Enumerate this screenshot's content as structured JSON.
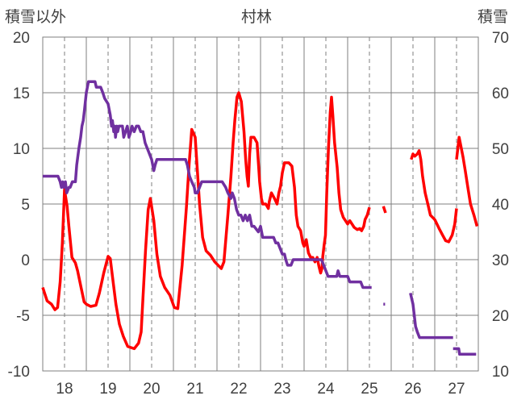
{
  "chart_data": {
    "type": "line",
    "title": "村林",
    "ylabel_left": "積雪以外",
    "ylabel_right": "積雪",
    "xlabel": "",
    "x_ticks": [
      "18",
      "19",
      "20",
      "21",
      "22",
      "23",
      "24",
      "25",
      "26",
      "27"
    ],
    "xlim": [
      17.5,
      27.5
    ],
    "ylim_left": [
      -10,
      20
    ],
    "ylim_right": [
      10,
      70
    ],
    "y_ticks_left": [
      -10,
      -5,
      0,
      5,
      10,
      15,
      20
    ],
    "y_ticks_right": [
      10,
      20,
      30,
      40,
      50,
      60,
      70
    ],
    "grid": true,
    "series": [
      {
        "axis": "left",
        "color": "#FF0000",
        "segments": [
          [
            [
              17.5,
              -2.5
            ],
            [
              17.6,
              -3.7
            ],
            [
              17.7,
              -4.0
            ],
            [
              17.78,
              -4.5
            ],
            [
              17.84,
              -4.3
            ],
            [
              17.9,
              -2.0
            ],
            [
              17.95,
              1.5
            ],
            [
              18.0,
              6.3
            ],
            [
              18.06,
              4.8
            ],
            [
              18.1,
              3.0
            ],
            [
              18.17,
              0.2
            ],
            [
              18.25,
              -0.3
            ],
            [
              18.3,
              -1.0
            ],
            [
              18.38,
              -2.5
            ],
            [
              18.45,
              -3.8
            ],
            [
              18.5,
              -4.0
            ],
            [
              18.6,
              -4.2
            ],
            [
              18.72,
              -4.1
            ],
            [
              18.8,
              -3.0
            ],
            [
              18.9,
              -1.2
            ],
            [
              19.0,
              0.3
            ],
            [
              19.05,
              0.1
            ],
            [
              19.1,
              -1.5
            ],
            [
              19.18,
              -4.0
            ],
            [
              19.26,
              -5.8
            ],
            [
              19.35,
              -6.9
            ],
            [
              19.45,
              -7.8
            ],
            [
              19.6,
              -8.0
            ],
            [
              19.7,
              -7.5
            ],
            [
              19.76,
              -6.5
            ],
            [
              19.8,
              -3.5
            ],
            [
              19.86,
              0.8
            ],
            [
              19.92,
              4.5
            ],
            [
              19.97,
              5.5
            ],
            [
              20.05,
              3.5
            ],
            [
              20.12,
              0.5
            ],
            [
              20.2,
              -1.5
            ],
            [
              20.3,
              -2.5
            ],
            [
              20.42,
              -3.2
            ],
            [
              20.52,
              -4.3
            ],
            [
              20.6,
              -4.4
            ],
            [
              20.7,
              -0.5
            ],
            [
              20.8,
              4.8
            ],
            [
              20.86,
              8.5
            ],
            [
              20.92,
              11.7
            ],
            [
              21.0,
              11.0
            ],
            [
              21.1,
              5.0
            ],
            [
              21.17,
              2.0
            ],
            [
              21.25,
              0.8
            ],
            [
              21.35,
              0.4
            ],
            [
              21.45,
              -0.2
            ],
            [
              21.55,
              -0.6
            ],
            [
              21.6,
              -0.8
            ],
            [
              21.66,
              -0.2
            ],
            [
              21.75,
              4.0
            ],
            [
              21.82,
              7.5
            ],
            [
              21.87,
              10.5
            ],
            [
              21.91,
              12.5
            ],
            [
              21.96,
              14.6
            ],
            [
              22.0,
              15.0
            ],
            [
              22.06,
              14.2
            ],
            [
              22.12,
              11.5
            ],
            [
              22.16,
              9.0
            ],
            [
              22.19,
              7.5
            ],
            [
              22.22,
              6.6
            ],
            [
              22.25,
              9.5
            ],
            [
              22.28,
              11.0
            ],
            [
              22.35,
              11.0
            ],
            [
              22.42,
              10.5
            ],
            [
              22.48,
              7.0
            ],
            [
              22.52,
              5.5
            ],
            [
              22.55,
              5.0
            ],
            [
              22.62,
              5.0
            ],
            [
              22.68,
              4.6
            ],
            [
              22.7,
              5.2
            ],
            [
              22.75,
              6.0
            ],
            [
              22.82,
              5.5
            ],
            [
              22.88,
              5.0
            ],
            [
              22.92,
              6.0
            ],
            [
              22.96,
              6.6
            ],
            [
              23.0,
              7.8
            ],
            [
              23.05,
              8.7
            ],
            [
              23.15,
              8.7
            ],
            [
              23.22,
              8.4
            ],
            [
              23.28,
              6.5
            ],
            [
              23.32,
              4.0
            ],
            [
              23.36,
              3.0
            ],
            [
              23.42,
              2.6
            ],
            [
              23.47,
              1.5
            ],
            [
              23.5,
              1.2
            ],
            [
              23.55,
              1.8
            ],
            [
              23.6,
              0.6
            ],
            [
              23.65,
              0.2
            ],
            [
              23.7,
              0.2
            ],
            [
              23.75,
              -0.2
            ],
            [
              23.8,
              0.2
            ],
            [
              23.84,
              -0.6
            ],
            [
              23.88,
              -1.2
            ],
            [
              23.91,
              -0.8
            ],
            [
              23.93,
              0.3
            ],
            [
              23.96,
              1.3
            ],
            [
              23.99,
              2.2
            ],
            [
              24.02,
              6.0
            ],
            [
              24.06,
              10.0
            ],
            [
              24.1,
              13.2
            ],
            [
              24.13,
              14.6
            ],
            [
              24.16,
              13.0
            ],
            [
              24.2,
              10.5
            ],
            [
              24.26,
              8.3
            ],
            [
              24.3,
              6.0
            ],
            [
              24.34,
              4.5
            ],
            [
              24.4,
              3.8
            ],
            [
              24.45,
              3.5
            ],
            [
              24.5,
              3.2
            ],
            [
              24.55,
              3.5
            ],
            [
              24.6,
              3.2
            ],
            [
              24.65,
              2.9
            ],
            [
              24.72,
              2.7
            ],
            [
              24.78,
              2.8
            ],
            [
              24.82,
              2.6
            ],
            [
              24.87,
              3.0
            ],
            [
              24.9,
              3.6
            ],
            [
              24.95,
              4.0
            ],
            [
              25.0,
              4.7
            ]
          ],
          [
            [
              25.32,
              4.8
            ],
            [
              25.37,
              4.2
            ]
          ],
          [
            [
              25.96,
              9.0
            ],
            [
              26.0,
              9.5
            ],
            [
              26.04,
              9.3
            ],
            [
              26.1,
              9.5
            ],
            [
              26.14,
              9.8
            ],
            [
              26.18,
              9.0
            ],
            [
              26.22,
              7.5
            ],
            [
              26.28,
              6.0
            ],
            [
              26.34,
              5.0
            ],
            [
              26.4,
              4.0
            ],
            [
              26.5,
              3.6
            ],
            [
              26.6,
              2.8
            ],
            [
              26.68,
              2.2
            ],
            [
              26.75,
              1.7
            ],
            [
              26.82,
              1.6
            ],
            [
              26.9,
              2.2
            ],
            [
              26.96,
              3.2
            ],
            [
              27.0,
              4.6
            ]
          ],
          [
            [
              27.0,
              9.0
            ],
            [
              27.06,
              11.0
            ],
            [
              27.1,
              10.2
            ],
            [
              27.15,
              9.2
            ],
            [
              27.2,
              8.0
            ],
            [
              27.26,
              6.5
            ],
            [
              27.32,
              5.0
            ],
            [
              27.4,
              4.0
            ],
            [
              27.47,
              3.0
            ]
          ]
        ]
      },
      {
        "axis": "right",
        "color": "#7030A0",
        "segments": [
          [
            [
              17.5,
              45
            ],
            [
              17.85,
              45
            ],
            [
              17.9,
              44
            ],
            [
              17.93,
              43
            ],
            [
              17.96,
              44
            ],
            [
              17.98,
              43
            ],
            [
              18.02,
              44
            ],
            [
              18.05,
              42
            ],
            [
              18.1,
              43
            ],
            [
              18.13,
              43
            ],
            [
              18.18,
              44
            ],
            [
              18.25,
              44
            ],
            [
              18.28,
              47
            ],
            [
              18.33,
              50
            ],
            [
              18.37,
              52
            ],
            [
              18.4,
              54
            ],
            [
              18.43,
              55
            ],
            [
              18.46,
              57
            ],
            [
              18.5,
              60
            ],
            [
              18.55,
              62
            ],
            [
              18.6,
              62
            ],
            [
              18.7,
              62
            ],
            [
              18.73,
              61
            ],
            [
              18.83,
              61
            ],
            [
              18.88,
              60
            ],
            [
              18.92,
              59
            ],
            [
              19.0,
              58
            ],
            [
              19.05,
              56
            ],
            [
              19.08,
              54
            ],
            [
              19.1,
              55
            ],
            [
              19.13,
              53
            ],
            [
              19.15,
              54
            ],
            [
              19.17,
              52
            ],
            [
              19.2,
              54
            ],
            [
              19.22,
              53
            ],
            [
              19.25,
              54
            ],
            [
              19.33,
              54
            ],
            [
              19.36,
              52
            ],
            [
              19.4,
              53
            ],
            [
              19.44,
              54
            ],
            [
              19.48,
              52
            ],
            [
              19.52,
              53
            ],
            [
              19.55,
              54
            ],
            [
              19.6,
              53
            ],
            [
              19.65,
              54
            ],
            [
              19.7,
              54
            ],
            [
              19.75,
              53
            ],
            [
              19.8,
              53
            ],
            [
              19.85,
              51
            ],
            [
              19.9,
              50
            ],
            [
              19.95,
              49
            ],
            [
              20.0,
              48
            ],
            [
              20.05,
              46
            ],
            [
              20.08,
              47
            ],
            [
              20.12,
              48
            ],
            [
              20.2,
              48
            ],
            [
              20.78,
              48
            ],
            [
              20.82,
              47
            ],
            [
              20.87,
              45
            ],
            [
              20.92,
              44
            ],
            [
              20.98,
              43
            ],
            [
              21.0,
              42
            ],
            [
              21.05,
              42
            ],
            [
              21.1,
              43
            ],
            [
              21.15,
              44
            ],
            [
              21.55,
              44
            ],
            [
              21.62,
              44
            ],
            [
              21.7,
              43
            ],
            [
              21.75,
              42
            ],
            [
              21.82,
              41
            ],
            [
              21.85,
              42
            ],
            [
              21.9,
              41
            ],
            [
              21.95,
              39
            ],
            [
              22.0,
              38
            ],
            [
              22.05,
              38
            ],
            [
              22.1,
              37
            ],
            [
              22.15,
              38
            ],
            [
              22.2,
              37
            ],
            [
              22.25,
              38
            ],
            [
              22.3,
              36
            ],
            [
              22.35,
              36
            ],
            [
              22.45,
              35
            ],
            [
              22.5,
              36
            ],
            [
              22.55,
              34
            ],
            [
              22.8,
              34
            ],
            [
              22.85,
              33
            ],
            [
              22.9,
              33
            ],
            [
              22.95,
              32
            ],
            [
              23.0,
              31
            ],
            [
              23.05,
              31
            ],
            [
              23.08,
              30
            ],
            [
              23.12,
              29
            ],
            [
              23.2,
              29
            ],
            [
              23.25,
              30
            ],
            [
              23.9,
              30
            ],
            [
              23.95,
              29
            ],
            [
              24.0,
              28
            ],
            [
              24.05,
              27
            ],
            [
              24.25,
              27
            ],
            [
              24.28,
              28
            ],
            [
              24.32,
              27
            ],
            [
              24.5,
              27
            ],
            [
              24.55,
              26
            ],
            [
              24.8,
              26
            ],
            [
              24.85,
              25
            ],
            [
              25.05,
              25
            ]
          ],
          [
            [
              25.32,
              22
            ],
            [
              25.36,
              22
            ]
          ],
          [
            [
              25.94,
              24
            ],
            [
              26.0,
              22
            ],
            [
              26.03,
              20
            ],
            [
              26.06,
              18
            ],
            [
              26.1,
              17
            ],
            [
              26.15,
              16
            ],
            [
              26.92,
              16
            ]
          ],
          [
            [
              26.92,
              14
            ],
            [
              27.05,
              14
            ],
            [
              27.07,
              13
            ],
            [
              27.45,
              13
            ]
          ]
        ]
      }
    ]
  }
}
